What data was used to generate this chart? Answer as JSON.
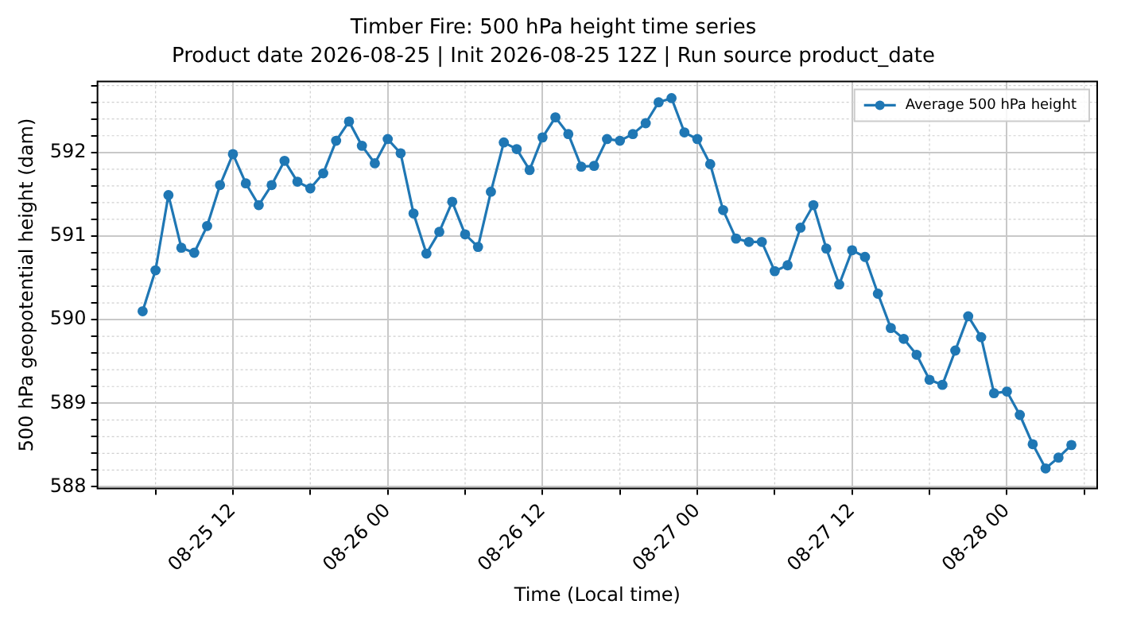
{
  "chart_data": {
    "type": "line",
    "title": "Timber Fire: 500 hPa height time series",
    "subtitle": "Product date 2026-08-25 | Init 2026-08-25 12Z | Run source product_date",
    "xlabel": "Time (Local time)",
    "ylabel": "500 hPa geopotential height (dam)",
    "x": [
      "2026-08-25T05:00",
      "2026-08-25T06:00",
      "2026-08-25T07:00",
      "2026-08-25T08:00",
      "2026-08-25T09:00",
      "2026-08-25T10:00",
      "2026-08-25T11:00",
      "2026-08-25T12:00",
      "2026-08-25T13:00",
      "2026-08-25T14:00",
      "2026-08-25T15:00",
      "2026-08-25T16:00",
      "2026-08-25T17:00",
      "2026-08-25T18:00",
      "2026-08-25T19:00",
      "2026-08-25T20:00",
      "2026-08-25T21:00",
      "2026-08-25T22:00",
      "2026-08-25T23:00",
      "2026-08-26T00:00",
      "2026-08-26T01:00",
      "2026-08-26T02:00",
      "2026-08-26T03:00",
      "2026-08-26T04:00",
      "2026-08-26T05:00",
      "2026-08-26T06:00",
      "2026-08-26T07:00",
      "2026-08-26T08:00",
      "2026-08-26T09:00",
      "2026-08-26T10:00",
      "2026-08-26T11:00",
      "2026-08-26T12:00",
      "2026-08-26T13:00",
      "2026-08-26T14:00",
      "2026-08-26T15:00",
      "2026-08-26T16:00",
      "2026-08-26T17:00",
      "2026-08-26T18:00",
      "2026-08-26T19:00",
      "2026-08-26T20:00",
      "2026-08-26T21:00",
      "2026-08-26T22:00",
      "2026-08-26T23:00",
      "2026-08-27T00:00",
      "2026-08-27T01:00",
      "2026-08-27T02:00",
      "2026-08-27T03:00",
      "2026-08-27T04:00",
      "2026-08-27T05:00",
      "2026-08-27T06:00",
      "2026-08-27T07:00",
      "2026-08-27T08:00",
      "2026-08-27T09:00",
      "2026-08-27T10:00",
      "2026-08-27T11:00",
      "2026-08-27T12:00",
      "2026-08-27T13:00",
      "2026-08-27T14:00",
      "2026-08-27T15:00",
      "2026-08-27T16:00",
      "2026-08-27T17:00",
      "2026-08-27T18:00",
      "2026-08-27T19:00",
      "2026-08-27T20:00",
      "2026-08-27T21:00",
      "2026-08-27T22:00",
      "2026-08-27T23:00",
      "2026-08-28T00:00",
      "2026-08-28T01:00",
      "2026-08-28T02:00",
      "2026-08-28T03:00",
      "2026-08-28T04:00",
      "2026-08-28T05:00"
    ],
    "series": [
      {
        "name": "Average 500 hPa height",
        "color": "#1f77b4",
        "values": [
          590.1,
          590.59,
          591.49,
          590.86,
          590.8,
          591.12,
          591.61,
          591.98,
          591.63,
          591.37,
          591.61,
          591.9,
          591.65,
          591.57,
          591.75,
          592.14,
          592.37,
          592.08,
          591.87,
          592.16,
          591.99,
          591.27,
          590.79,
          591.05,
          591.41,
          591.02,
          590.87,
          591.53,
          592.12,
          592.04,
          591.79,
          592.18,
          592.42,
          592.22,
          591.83,
          591.84,
          592.16,
          592.14,
          592.22,
          592.35,
          592.6,
          592.65,
          592.24,
          592.16,
          591.86,
          591.31,
          590.97,
          590.93,
          590.93,
          590.58,
          590.65,
          591.1,
          591.37,
          590.85,
          590.42,
          590.83,
          590.75,
          590.31,
          589.9,
          589.77,
          589.58,
          589.28,
          589.22,
          589.63,
          590.04,
          589.79,
          589.12,
          589.14,
          588.86,
          588.51,
          588.22,
          588.35,
          588.5
        ]
      }
    ],
    "xlim": [
      "2026-08-25T01:30",
      "2026-08-28T07:00"
    ],
    "xticks": [
      {
        "value": "2026-08-25T06:00",
        "label": null
      },
      {
        "value": "2026-08-25T12:00",
        "label": "08-25 12"
      },
      {
        "value": "2026-08-25T18:00",
        "label": null
      },
      {
        "value": "2026-08-26T00:00",
        "label": "08-26 00"
      },
      {
        "value": "2026-08-26T06:00",
        "label": null
      },
      {
        "value": "2026-08-26T12:00",
        "label": "08-26 12"
      },
      {
        "value": "2026-08-26T18:00",
        "label": null
      },
      {
        "value": "2026-08-27T00:00",
        "label": "08-27 00"
      },
      {
        "value": "2026-08-27T06:00",
        "label": null
      },
      {
        "value": "2026-08-27T12:00",
        "label": "08-27 12"
      },
      {
        "value": "2026-08-27T18:00",
        "label": null
      },
      {
        "value": "2026-08-28T00:00",
        "label": "08-28 00"
      },
      {
        "value": "2026-08-28T06:00",
        "label": null
      }
    ],
    "ylim": [
      587.98,
      592.85
    ],
    "yticks": [
      588,
      {
        "value": 588.2,
        "label": null
      },
      {
        "value": 588.4,
        "label": null
      },
      {
        "value": 588.6,
        "label": null
      },
      {
        "value": 588.8,
        "label": null
      },
      589,
      {
        "value": 589.2,
        "label": null
      },
      {
        "value": 589.4,
        "label": null
      },
      {
        "value": 589.6,
        "label": null
      },
      {
        "value": 589.8,
        "label": null
      },
      590,
      {
        "value": 590.2,
        "label": null
      },
      {
        "value": 590.4,
        "label": null
      },
      {
        "value": 590.6,
        "label": null
      },
      {
        "value": 590.8,
        "label": null
      },
      591,
      {
        "value": 591.2,
        "label": null
      },
      {
        "value": 591.4,
        "label": null
      },
      {
        "value": 591.6,
        "label": null
      },
      {
        "value": 591.8,
        "label": null
      },
      592,
      {
        "value": 592.2,
        "label": null
      },
      {
        "value": 592.4,
        "label": null
      },
      {
        "value": 592.6,
        "label": null
      },
      {
        "value": 592.8,
        "label": null
      }
    ],
    "grid": true,
    "legend": "top right",
    "marker": "circle",
    "line_style": "solid"
  }
}
